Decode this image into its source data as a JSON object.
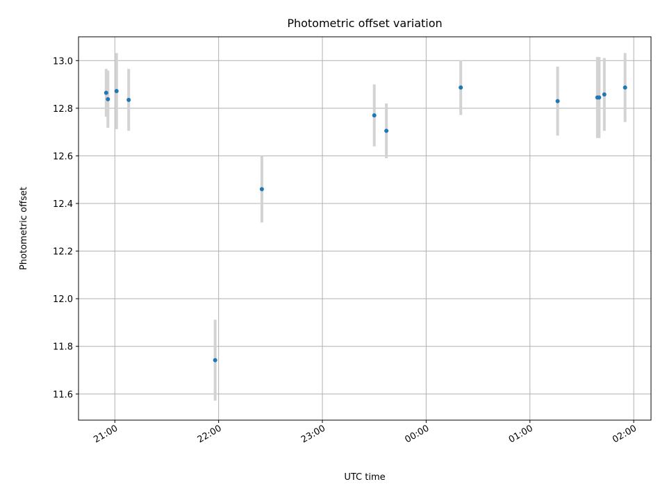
{
  "chart_data": {
    "type": "scatter",
    "title": "Photometric offset variation",
    "xlabel": "UTC time",
    "ylabel": "Photometric offset",
    "x_axis": "time",
    "x_tick_labels": [
      "21:00",
      "22:00",
      "23:00",
      "00:00",
      "01:00",
      "02:00"
    ],
    "x_tick_times": [
      "2000-01-01T21:00",
      "2000-01-01T22:00",
      "2000-01-01T23:00",
      "2000-01-02T00:00",
      "2000-01-02T01:00",
      "2000-01-02T02:00"
    ],
    "xlim": [
      "2000-01-01T20:39",
      "2000-01-02T02:10"
    ],
    "ylim": [
      11.49,
      13.1
    ],
    "y_ticks": [
      11.6,
      11.8,
      12.0,
      12.2,
      12.4,
      12.6,
      12.8,
      13.0
    ],
    "grid": true,
    "point_color": "#1f77b4",
    "errorbar_color": "#d3d3d3",
    "points": [
      {
        "x": "2000-01-01T20:55",
        "y": 12.865,
        "err": 0.1
      },
      {
        "x": "2000-01-01T20:56",
        "y": 12.838,
        "err": 0.12
      },
      {
        "x": "2000-01-01T21:01",
        "y": 12.872,
        "err": 0.16
      },
      {
        "x": "2000-01-01T21:08",
        "y": 12.835,
        "err": 0.13
      },
      {
        "x": "2000-01-01T21:58",
        "y": 11.742,
        "err": 0.17
      },
      {
        "x": "2000-01-01T22:25",
        "y": 12.46,
        "err": 0.14
      },
      {
        "x": "2000-01-01T23:30",
        "y": 12.77,
        "err": 0.13
      },
      {
        "x": "2000-01-01T23:37",
        "y": 12.705,
        "err": 0.115
      },
      {
        "x": "2000-01-02T00:20",
        "y": 12.887,
        "err": 0.115
      },
      {
        "x": "2000-01-02T01:16",
        "y": 12.83,
        "err": 0.145
      },
      {
        "x": "2000-01-02T01:39",
        "y": 12.845,
        "err": 0.17
      },
      {
        "x": "2000-01-02T01:40",
        "y": 12.845,
        "err": 0.17
      },
      {
        "x": "2000-01-02T01:43",
        "y": 12.858,
        "err": 0.153
      },
      {
        "x": "2000-01-02T01:55",
        "y": 12.887,
        "err": 0.145
      }
    ]
  }
}
